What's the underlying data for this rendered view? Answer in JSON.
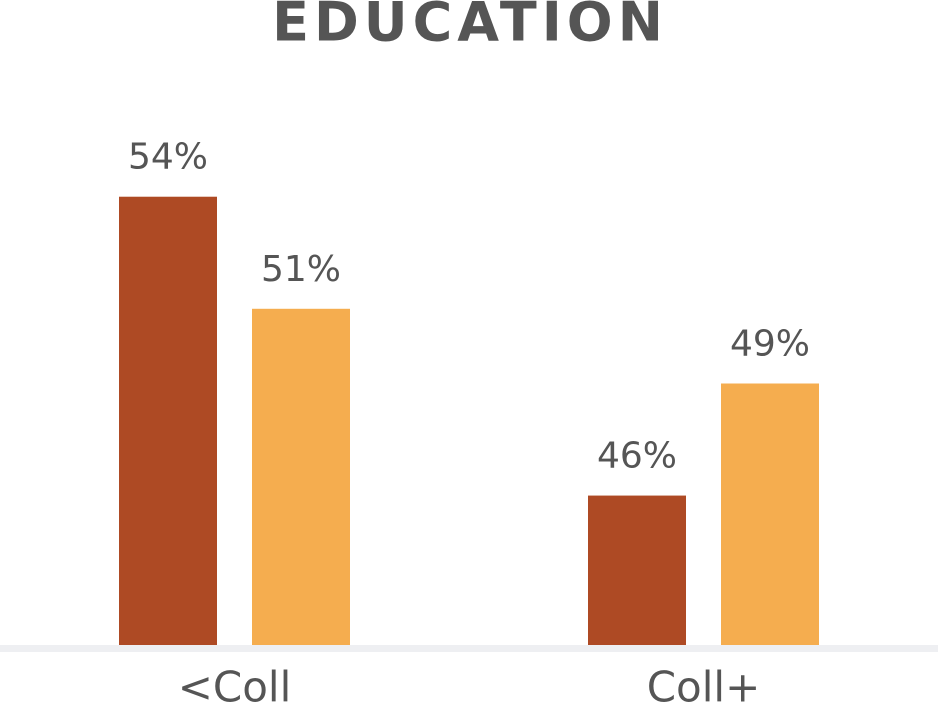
{
  "chart_data": {
    "type": "bar",
    "title": "EDUCATION",
    "categories": [
      "<Coll",
      "Coll+"
    ],
    "series": [
      {
        "color": "#ae4a24",
        "values": [
          54,
          46
        ],
        "value_labels": [
          "54%",
          "46%"
        ]
      },
      {
        "color": "#f5ad4f",
        "values": [
          51,
          49
        ],
        "value_labels": [
          "51%",
          "49%"
        ]
      }
    ],
    "ylim": [
      42,
      56
    ]
  }
}
